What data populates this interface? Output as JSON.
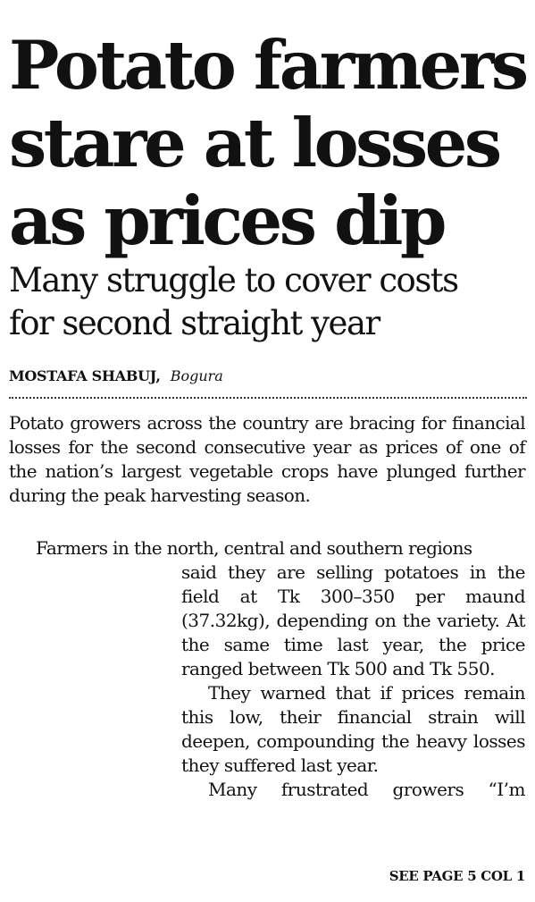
{
  "headline": {
    "line1": "Potato farmers",
    "line2": "stare at losses",
    "line3": "as prices dip"
  },
  "subheadline": {
    "line1": "Many struggle to cover costs",
    "line2": "for second straight year"
  },
  "byline": {
    "author": "MOSTAFA SHABUJ,",
    "location": "Bogura"
  },
  "body": {
    "lead": "Potato growers across the country are bracing for financial losses for the second consecutive year as prices of one of the nation’s largest vegetable crops have plunged further during the peak harvesting season.",
    "p2_first_line": "Farmers in the north, central and southern regions",
    "p2_rest": "said they are selling potatoes in the field at Tk 300–350 per maund (37.32kg), depending on the variety. At the same time last year, the price ranged between Tk 500 and Tk 550.",
    "p3": "They warned that if prices remain this low, their financial strain will deepen, compounding the heavy losses they suffered last year.",
    "p4": "Many frustrated growers “I’m"
  },
  "jump_line": "SEE PAGE 5 COL 1"
}
